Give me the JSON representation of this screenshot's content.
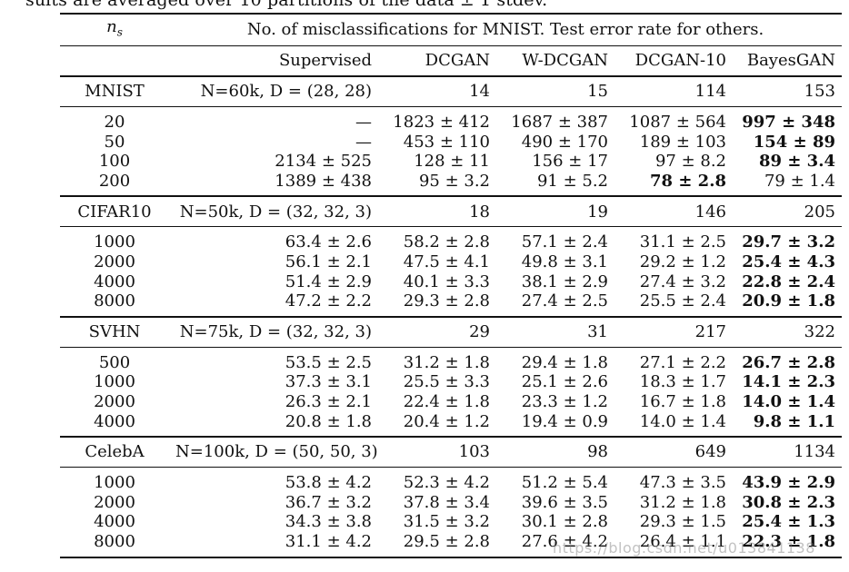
{
  "caption": "sults are averaged over 10 partitions of the data ± 1 stdev.",
  "header": {
    "ns_label": "n",
    "ns_sub": "s",
    "span_title": "No. of misclassifications for MNIST. Test error rate for others."
  },
  "columns": [
    "Supervised",
    "DCGAN",
    "W-DCGAN",
    "DCGAN-10",
    "BayesGAN"
  ],
  "datasets": [
    {
      "name": "MNIST",
      "meta": "N=60k, D = (28, 28)",
      "params": [
        "14",
        "15",
        "114",
        "153"
      ],
      "rows": [
        {
          "ns": "20",
          "sup": "—",
          "dcgan": "1823 ± 412",
          "wdcgan": "1687 ± 387",
          "dcgan10": "1087 ± 564",
          "bayesgan": "997 ± 348",
          "bold": "bayesgan"
        },
        {
          "ns": "50",
          "sup": "—",
          "dcgan": "453 ± 110",
          "wdcgan": "490 ± 170",
          "dcgan10": "189 ± 103",
          "bayesgan": "154 ± 89",
          "bold": "bayesgan"
        },
        {
          "ns": "100",
          "sup": "2134 ± 525",
          "dcgan": "128 ± 11",
          "wdcgan": "156 ± 17",
          "dcgan10": "97 ± 8.2",
          "bayesgan": "89 ± 3.4",
          "bold": "bayesgan"
        },
        {
          "ns": "200",
          "sup": "1389 ± 438",
          "dcgan": "95 ± 3.2",
          "wdcgan": "91 ± 5.2",
          "dcgan10": "78 ± 2.8",
          "bayesgan": "79 ± 1.4",
          "bold": "dcgan10"
        }
      ]
    },
    {
      "name": "CIFAR10",
      "meta": "N=50k, D = (32, 32, 3)",
      "params": [
        "18",
        "19",
        "146",
        "205"
      ],
      "rows": [
        {
          "ns": "1000",
          "sup": "63.4 ± 2.6",
          "dcgan": "58.2 ± 2.8",
          "wdcgan": "57.1 ± 2.4",
          "dcgan10": "31.1 ± 2.5",
          "bayesgan": "29.7 ± 3.2",
          "bold": "bayesgan"
        },
        {
          "ns": "2000",
          "sup": "56.1 ± 2.1",
          "dcgan": "47.5 ± 4.1",
          "wdcgan": "49.8 ± 3.1",
          "dcgan10": "29.2 ± 1.2",
          "bayesgan": "25.4 ± 4.3",
          "bold": "bayesgan"
        },
        {
          "ns": "4000",
          "sup": "51.4 ± 2.9",
          "dcgan": "40.1 ± 3.3",
          "wdcgan": "38.1 ± 2.9",
          "dcgan10": "27.4 ± 3.2",
          "bayesgan": "22.8 ± 2.4",
          "bold": "bayesgan"
        },
        {
          "ns": "8000",
          "sup": "47.2 ± 2.2",
          "dcgan": "29.3 ± 2.8",
          "wdcgan": "27.4 ± 2.5",
          "dcgan10": "25.5 ± 2.4",
          "bayesgan": "20.9 ± 1.8",
          "bold": "bayesgan"
        }
      ]
    },
    {
      "name": "SVHN",
      "meta": "N=75k, D = (32, 32, 3)",
      "params": [
        "29",
        "31",
        "217",
        "322"
      ],
      "rows": [
        {
          "ns": "500",
          "sup": "53.5 ± 2.5",
          "dcgan": "31.2 ± 1.8",
          "wdcgan": "29.4 ± 1.8",
          "dcgan10": "27.1 ± 2.2",
          "bayesgan": "26.7 ± 2.8",
          "bold": "bayesgan"
        },
        {
          "ns": "1000",
          "sup": "37.3 ± 3.1",
          "dcgan": "25.5 ± 3.3",
          "wdcgan": "25.1 ± 2.6",
          "dcgan10": "18.3 ± 1.7",
          "bayesgan": "14.1 ± 2.3",
          "bold": "bayesgan"
        },
        {
          "ns": "2000",
          "sup": "26.3 ± 2.1",
          "dcgan": "22.4 ± 1.8",
          "wdcgan": "23.3 ± 1.2",
          "dcgan10": "16.7 ± 1.8",
          "bayesgan": "14.0 ± 1.4",
          "bold": "bayesgan"
        },
        {
          "ns": "4000",
          "sup": "20.8 ± 1.8",
          "dcgan": "20.4 ± 1.2",
          "wdcgan": "19.4 ± 0.9",
          "dcgan10": "14.0 ± 1.4",
          "bayesgan": "9.8 ± 1.1",
          "bold": "bayesgan"
        }
      ]
    },
    {
      "name": "CelebA",
      "meta": "N=100k, D = (50, 50, 3)",
      "params": [
        "103",
        "98",
        "649",
        "1134"
      ],
      "rows": [
        {
          "ns": "1000",
          "sup": "53.8 ± 4.2",
          "dcgan": "52.3 ± 4.2",
          "wdcgan": "51.2 ± 5.4",
          "dcgan10": "47.3 ± 3.5",
          "bayesgan": "43.9 ± 2.9",
          "bold": "bayesgan"
        },
        {
          "ns": "2000",
          "sup": "36.7 ± 3.2",
          "dcgan": "37.8 ± 3.4",
          "wdcgan": "39.6 ± 3.5",
          "dcgan10": "31.2 ± 1.8",
          "bayesgan": "30.8 ± 2.3",
          "bold": "bayesgan"
        },
        {
          "ns": "4000",
          "sup": "34.3 ± 3.8",
          "dcgan": "31.5 ± 3.2",
          "wdcgan": "30.1 ± 2.8",
          "dcgan10": "29.3 ± 1.5",
          "bayesgan": "25.4 ± 1.3",
          "bold": "bayesgan"
        },
        {
          "ns": "8000",
          "sup": "31.1 ± 4.2",
          "dcgan": "29.5 ± 2.8",
          "wdcgan": "27.6 ± 4.2",
          "dcgan10": "26.4 ± 1.1",
          "bayesgan": "22.3 ± 1.8",
          "bold": "bayesgan"
        }
      ]
    }
  ],
  "watermark": "https://blog.csdn.net/u013841138"
}
